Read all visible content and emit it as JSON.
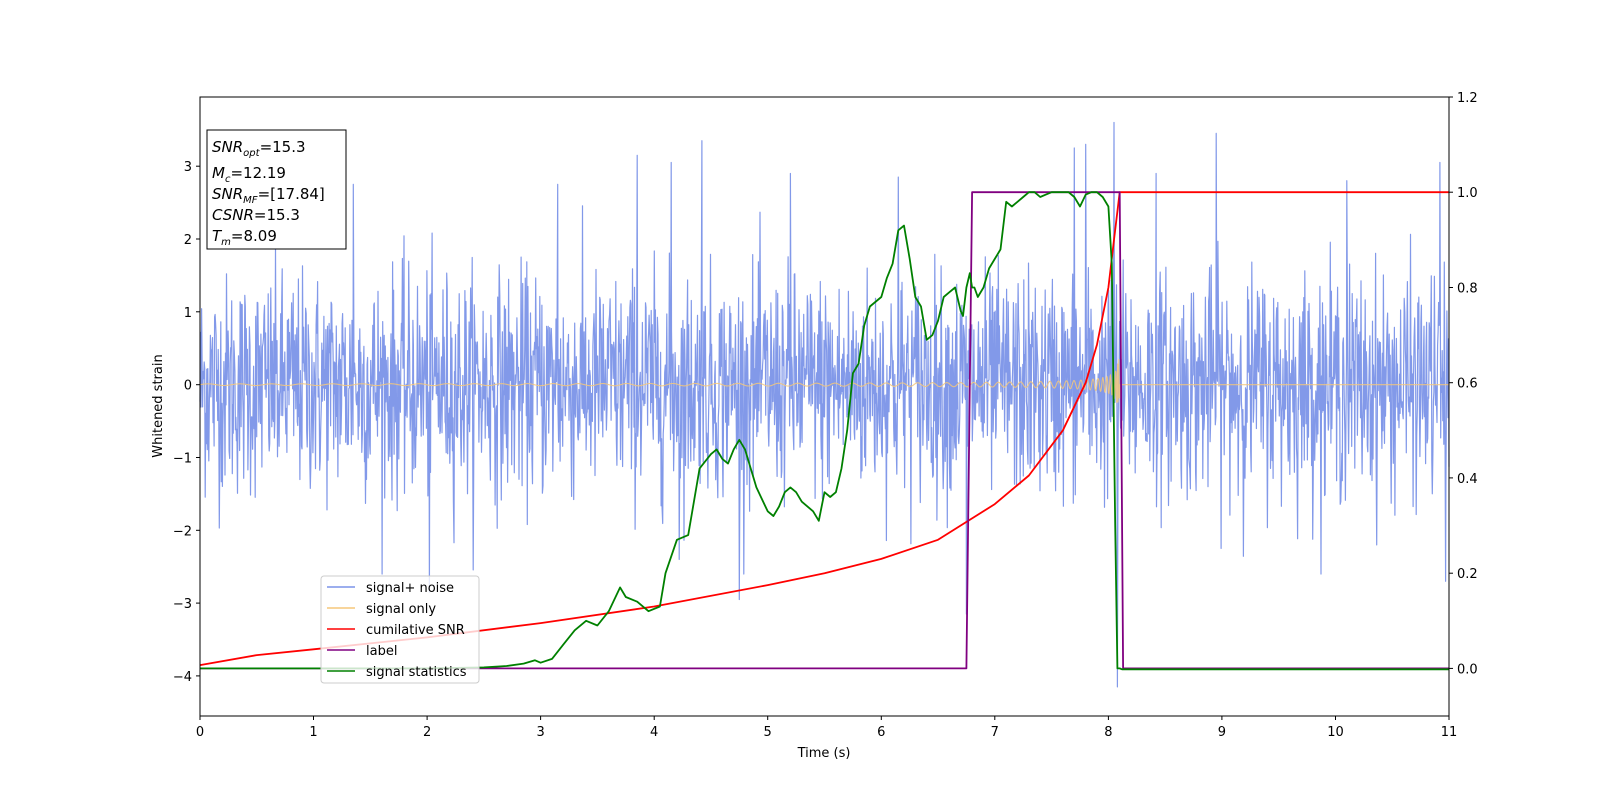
{
  "chart_data": {
    "type": "line",
    "xlabel": "Time (s)",
    "ylabel": "Whitened strain",
    "xlim": [
      0,
      11
    ],
    "ylim": [
      -4.55,
      3.95
    ],
    "y2lim": [
      -0.1,
      1.2
    ],
    "xticks": [
      0,
      1,
      2,
      3,
      4,
      5,
      6,
      7,
      8,
      9,
      10,
      11
    ],
    "yticks": [
      -4,
      -3,
      -2,
      -1,
      0,
      1,
      2,
      3
    ],
    "y2ticks": [
      0.0,
      0.2,
      0.4,
      0.6,
      0.8,
      1.0,
      1.2
    ],
    "info": {
      "snr_opt": {
        "base": "SNR",
        "sub": "opt",
        "value": "=15.3"
      },
      "mc": {
        "base": "M",
        "sub": "c",
        "value": "=12.19"
      },
      "snr_mf": {
        "base": "SNR",
        "sub": "MF",
        "value": "=[17.84]"
      },
      "csnr": {
        "base": "CSNR",
        "sub": "",
        "value": "=15.3"
      },
      "tm": {
        "base": "T",
        "sub": "m",
        "value": "=8.09"
      }
    },
    "legend": {
      "placement": "lower-left",
      "entries": [
        {
          "name": "signal+ noise",
          "color": "#7b94e8"
        },
        {
          "name": "signal only",
          "color": "#f5c77a"
        },
        {
          "name": "cumilative SNR",
          "color": "#ff0000"
        },
        {
          "name": "label",
          "color": "#800080"
        },
        {
          "name": "signal statistics",
          "color": "#008000"
        }
      ]
    },
    "series": [
      {
        "name": "signal+ noise",
        "axis": "left",
        "color": "#7b94e8",
        "kind": "noise",
        "sigma": 0.75,
        "x_range": [
          0,
          11
        ],
        "spikes": [
          [
            1.35,
            2.75
          ],
          [
            2.02,
            -2.85
          ],
          [
            3.15,
            2.75
          ],
          [
            3.85,
            3.15
          ],
          [
            4.15,
            3.05
          ],
          [
            4.22,
            -2.4
          ],
          [
            4.42,
            3.35
          ],
          [
            4.75,
            -2.95
          ],
          [
            5.2,
            2.9
          ],
          [
            6.15,
            2.85
          ],
          [
            6.75,
            -3.15
          ],
          [
            7.7,
            3.25
          ],
          [
            7.8,
            3.3
          ],
          [
            8.05,
            3.6
          ],
          [
            8.08,
            -4.15
          ],
          [
            8.42,
            2.9
          ],
          [
            8.95,
            3.45
          ],
          [
            10.1,
            2.8
          ],
          [
            10.92,
            3.05
          ],
          [
            10.97,
            -2.7
          ]
        ]
      },
      {
        "name": "signal only",
        "axis": "left",
        "color": "#f5c77a",
        "kind": "chirp",
        "t_merger": 8.1,
        "x_range": [
          0,
          11
        ]
      },
      {
        "name": "cumilative SNR",
        "axis": "right",
        "color": "#ff0000",
        "x": [
          0,
          0.5,
          1,
          2,
          3,
          4,
          5,
          5.5,
          6,
          6.5,
          7,
          7.3,
          7.6,
          7.8,
          7.9,
          8.0,
          8.05,
          8.1,
          11
        ],
        "y": [
          0.007,
          0.028,
          0.04,
          0.065,
          0.095,
          0.13,
          0.175,
          0.2,
          0.23,
          0.27,
          0.345,
          0.405,
          0.5,
          0.6,
          0.68,
          0.8,
          0.9,
          1.0,
          1.0
        ]
      },
      {
        "name": "label",
        "axis": "right",
        "color": "#800080",
        "x": [
          0,
          6.75,
          6.8,
          8.1,
          8.13,
          11
        ],
        "y": [
          0,
          0,
          1,
          1,
          0,
          0
        ]
      },
      {
        "name": "signal statistics",
        "axis": "right",
        "color": "#008000",
        "x": [
          0,
          2.0,
          2.5,
          2.7,
          2.85,
          2.95,
          3.0,
          3.1,
          3.2,
          3.3,
          3.4,
          3.5,
          3.6,
          3.7,
          3.75,
          3.85,
          3.95,
          4.05,
          4.1,
          4.2,
          4.3,
          4.4,
          4.5,
          4.55,
          4.6,
          4.65,
          4.7,
          4.75,
          4.8,
          4.85,
          4.9,
          5.0,
          5.05,
          5.1,
          5.15,
          5.2,
          5.25,
          5.3,
          5.4,
          5.45,
          5.5,
          5.55,
          5.6,
          5.65,
          5.7,
          5.75,
          5.8,
          5.85,
          5.9,
          6.0,
          6.05,
          6.1,
          6.15,
          6.2,
          6.25,
          6.3,
          6.35,
          6.4,
          6.45,
          6.5,
          6.55,
          6.6,
          6.65,
          6.7,
          6.72,
          6.75,
          6.78,
          6.8,
          6.82,
          6.85,
          6.9,
          6.95,
          7.0,
          7.05,
          7.1,
          7.15,
          7.2,
          7.25,
          7.3,
          7.35,
          7.4,
          7.45,
          7.5,
          7.55,
          7.6,
          7.65,
          7.7,
          7.75,
          7.8,
          7.85,
          7.9,
          7.95,
          8.0,
          8.03,
          8.06,
          8.08,
          8.1,
          8.12,
          8.15,
          8.5,
          11
        ],
        "y": [
          0,
          0,
          0.002,
          0.005,
          0.01,
          0.017,
          0.012,
          0.02,
          0.05,
          0.08,
          0.1,
          0.09,
          0.12,
          0.17,
          0.15,
          0.14,
          0.12,
          0.13,
          0.2,
          0.27,
          0.28,
          0.42,
          0.45,
          0.46,
          0.44,
          0.43,
          0.46,
          0.48,
          0.46,
          0.42,
          0.38,
          0.33,
          0.32,
          0.34,
          0.37,
          0.38,
          0.37,
          0.35,
          0.33,
          0.31,
          0.37,
          0.36,
          0.37,
          0.42,
          0.5,
          0.62,
          0.64,
          0.72,
          0.76,
          0.78,
          0.82,
          0.85,
          0.92,
          0.93,
          0.86,
          0.78,
          0.76,
          0.69,
          0.7,
          0.73,
          0.78,
          0.79,
          0.8,
          0.75,
          0.74,
          0.8,
          0.83,
          0.8,
          0.8,
          0.78,
          0.8,
          0.84,
          0.86,
          0.88,
          0.98,
          0.97,
          0.98,
          0.99,
          1.0,
          1.0,
          0.99,
          0.995,
          1.0,
          1.0,
          1.0,
          1.0,
          0.99,
          0.97,
          0.995,
          1.0,
          1.0,
          0.99,
          0.97,
          0.85,
          0.3,
          0.0,
          0.0,
          -0.002,
          -0.002,
          -0.002,
          -0.002
        ]
      }
    ]
  }
}
